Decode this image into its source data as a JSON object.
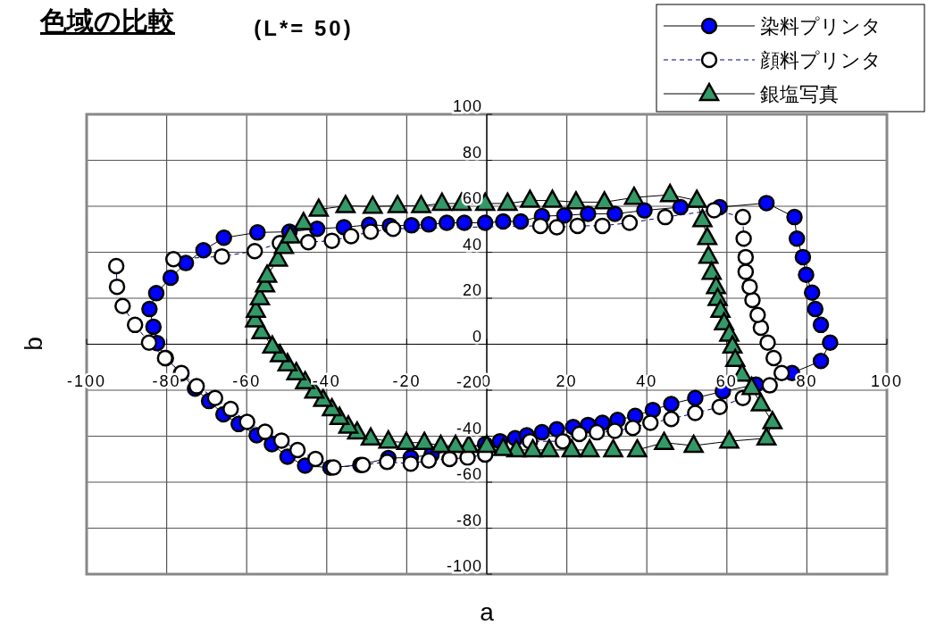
{
  "chart_data": {
    "type": "line",
    "title": "色域の比較",
    "subtitle": "(L*= 50)",
    "xlabel": "a",
    "ylabel": "b",
    "xlim": [
      -100,
      100
    ],
    "ylim": [
      -100,
      100
    ],
    "xticks": [
      -100,
      -80,
      -60,
      -40,
      -20,
      0,
      20,
      40,
      60,
      80,
      100
    ],
    "yticks": [
      -100,
      -80,
      -60,
      -40,
      -20,
      0,
      20,
      40,
      60,
      80,
      100
    ],
    "grid": true,
    "legend": "top right",
    "series": [
      {
        "name": "染料プリンタ",
        "color": "#0000ff",
        "marker": "circle",
        "line_style": "solid",
        "x": [
          83.5,
          82.1,
          81.3,
          79.8,
          79.0,
          77.5,
          76.9,
          69.9,
          58.2,
          48.4,
          39.4,
          32.0,
          25.3,
          19.4,
          13.8,
          8.5,
          4.1,
          -0.4,
          -5.6,
          -10.0,
          -14.5,
          -18.8,
          -24.2,
          -29.4,
          -35.7,
          -42.4,
          -49.3,
          -57.3,
          -65.7,
          -70.8,
          -75.2,
          -79.0,
          -82.6,
          -84.3,
          -83.3,
          -82.4,
          -80.2,
          -76.4,
          -72.9,
          -69.4,
          -65.8,
          -62.0,
          -57.5,
          -53.7,
          -49.8,
          -45.4,
          -39.1,
          -31.6,
          -24.6,
          -19.0,
          -13.8,
          -0.4,
          3.3,
          7.1,
          10.0,
          13.8,
          17.5,
          21.6,
          25.3,
          28.9,
          32.7,
          37.1,
          41.5,
          46.1,
          52.1,
          59.0,
          67.3,
          76.3,
          83.5,
          85.8
        ],
        "values": [
          8.4,
          15.3,
          22.4,
          30.2,
          37.9,
          45.9,
          55.3,
          61.4,
          59.6,
          59.6,
          58.2,
          56.7,
          56.7,
          56.0,
          55.7,
          53.4,
          53.4,
          52.8,
          52.8,
          52.8,
          52.1,
          51.7,
          51.5,
          51.9,
          50.9,
          50.2,
          48.9,
          48.6,
          46.3,
          40.9,
          35.3,
          28.9,
          22.2,
          15.3,
          7.6,
          0.5,
          -6.0,
          -12.7,
          -19.3,
          -24.7,
          -30.5,
          -34.7,
          -39.6,
          -43.5,
          -48.9,
          -52.8,
          -53.7,
          -52.5,
          -49.5,
          -49.3,
          -48.0,
          -43.5,
          -42.2,
          -40.9,
          -39.6,
          -38.3,
          -37.0,
          -36.0,
          -35.1,
          -34.2,
          -32.9,
          -31.2,
          -28.6,
          -26.0,
          -23.4,
          -20.5,
          -17.6,
          -12.5,
          -7.3,
          0.7
        ]
      },
      {
        "name": "顔料プリンタ",
        "color": "#ffffff",
        "marker": "circle",
        "line_style": "dashed",
        "x": [
          -92.6,
          -92.4,
          -91.0,
          -87.9,
          -84.4,
          -80.4,
          -76.3,
          -72.5,
          -67.9,
          -64.0,
          -59.9,
          -55.4,
          -51.3,
          -47.3,
          -42.8,
          -38.3,
          -31.0,
          -24.9,
          -19.0,
          -14.5,
          -9.3,
          -4.8,
          -0.4,
          10.8,
          19.0,
          23.1,
          27.5,
          32.0,
          36.5,
          40.9,
          46.1,
          52.1,
          58.2,
          64.0,
          70.7,
          73.7,
          71.7,
          70.2,
          68.5,
          67.7,
          66.4,
          65.7,
          64.7,
          64.7,
          64.2,
          64.0,
          56.8,
          44.6,
          35.7,
          28.9,
          22.7,
          17.5,
          13.4,
          -23.4,
          -29.0,
          -33.9,
          -38.7,
          -44.6,
          -51.7,
          -58.0,
          -66.2,
          -78.3
        ],
        "values": [
          34.0,
          25.0,
          16.6,
          8.4,
          0.7,
          -6.0,
          -12.5,
          -18.3,
          -23.4,
          -28.2,
          -33.8,
          -38.1,
          -41.9,
          -46.0,
          -49.9,
          -53.6,
          -52.5,
          -51.2,
          -51.9,
          -50.6,
          -49.9,
          -49.3,
          -48.0,
          -42.2,
          -42.2,
          -39.0,
          -38.3,
          -37.7,
          -36.4,
          -34.2,
          -32.5,
          -29.9,
          -27.3,
          -23.4,
          -17.9,
          -12.5,
          -6.0,
          0.7,
          7.2,
          12.7,
          19.2,
          25.0,
          31.5,
          37.9,
          45.9,
          55.3,
          58.3,
          55.3,
          52.8,
          51.5,
          51.5,
          50.9,
          51.5,
          50.2,
          48.9,
          47.0,
          45.0,
          44.4,
          44.0,
          40.5,
          38.2,
          37.0
        ]
      },
      {
        "name": "銀塩写真",
        "color": "#339966",
        "marker": "triangle",
        "line_style": "solid",
        "x": [
          -42.0,
          -35.3,
          -28.5,
          -22.3,
          -16.4,
          -11.2,
          -6.3,
          -0.4,
          5.2,
          10.8,
          16.4,
          22.3,
          29.4,
          36.8,
          45.8,
          52.5,
          53.9,
          55.1,
          55.4,
          56.2,
          57.3,
          57.7,
          58.4,
          59.3,
          60.6,
          61.4,
          62.1,
          63.8,
          66.2,
          68.5,
          71.4,
          69.9,
          60.6,
          51.7,
          44.3,
          37.6,
          31.6,
          25.7,
          21.2,
          15.6,
          11.5,
          7.4,
          4.1,
          0.0,
          -4.5,
          -7.8,
          -11.5,
          -15.6,
          -20.1,
          -24.6,
          -29.0,
          -32.4,
          -34.6,
          -36.8,
          -38.7,
          -40.9,
          -43.1,
          -45.4,
          -47.6,
          -49.8,
          -51.7,
          -53.6,
          -56.3,
          -57.9,
          -57.7,
          -56.7,
          -55.4,
          -54.9,
          -52.2,
          -50.7,
          -49.1,
          -45.8
        ],
        "values": [
          58.6,
          60.2,
          59.9,
          60.2,
          60.2,
          61.2,
          61.2,
          61.2,
          61.2,
          62.5,
          62.5,
          61.8,
          61.8,
          63.8,
          65.0,
          62.5,
          54.1,
          46.3,
          38.2,
          31.2,
          25.0,
          19.8,
          14.7,
          9.2,
          4.3,
          -0.9,
          -6.7,
          -13.1,
          -18.9,
          -26.0,
          -33.8,
          -40.9,
          -42.2,
          -44.1,
          -42.8,
          -46.0,
          -46.0,
          -46.0,
          -46.0,
          -46.0,
          -46.0,
          -46.0,
          -45.4,
          -44.1,
          -44.1,
          -44.1,
          -44.1,
          -42.8,
          -42.8,
          -42.2,
          -40.9,
          -38.3,
          -35.7,
          -31.9,
          -28.2,
          -24.1,
          -20.5,
          -16.4,
          -12.5,
          -8.6,
          -4.7,
          -0.9,
          5.3,
          10.5,
          14.7,
          20.1,
          25.7,
          29.9,
          36.9,
          42.4,
          47.0,
          52.8
        ]
      }
    ]
  }
}
